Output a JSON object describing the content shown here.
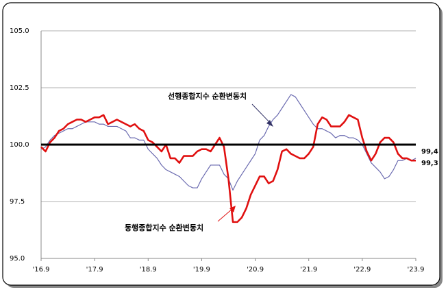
{
  "chart_data": {
    "type": "line",
    "categories": [
      "'16.9",
      null,
      null,
      null,
      null,
      null,
      null,
      null,
      null,
      null,
      null,
      null,
      "'17.9",
      null,
      null,
      null,
      null,
      null,
      null,
      null,
      null,
      null,
      null,
      null,
      "'18.9",
      null,
      null,
      null,
      null,
      null,
      null,
      null,
      null,
      null,
      null,
      null,
      "'19.9",
      null,
      null,
      null,
      null,
      null,
      null,
      null,
      null,
      null,
      null,
      null,
      "'20.9",
      null,
      null,
      null,
      null,
      null,
      null,
      null,
      null,
      null,
      null,
      null,
      "'21.9",
      null,
      null,
      null,
      null,
      null,
      null,
      null,
      null,
      null,
      null,
      null,
      "'22.9",
      null,
      null,
      null,
      null,
      null,
      null,
      null,
      null,
      null,
      null,
      null,
      "'23.9"
    ],
    "series": [
      {
        "name": "선행종합지수 순환변동치",
        "color": "#6b6bb0",
        "width": 1.2,
        "values": [
          99.8,
          99.9,
          100.2,
          100.4,
          100.5,
          100.6,
          100.7,
          100.7,
          100.8,
          100.9,
          101.0,
          101.0,
          101.0,
          100.9,
          100.9,
          100.8,
          100.8,
          100.8,
          100.7,
          100.6,
          100.3,
          100.3,
          100.2,
          100.2,
          99.8,
          99.6,
          99.4,
          99.1,
          98.9,
          98.8,
          98.7,
          98.6,
          98.4,
          98.2,
          98.1,
          98.1,
          98.5,
          98.8,
          99.1,
          99.1,
          99.1,
          98.7,
          98.5,
          98.0,
          98.4,
          98.7,
          99.0,
          99.3,
          99.6,
          100.2,
          100.4,
          100.8,
          101.1,
          101.3,
          101.6,
          101.9,
          102.2,
          102.1,
          101.8,
          101.5,
          101.2,
          100.9,
          100.7,
          100.7,
          100.6,
          100.5,
          100.3,
          100.4,
          100.4,
          100.3,
          100.3,
          100.2,
          100.0,
          99.6,
          99.2,
          99.0,
          98.8,
          98.5,
          98.6,
          98.9,
          99.3,
          99.3,
          99.4,
          99.3,
          99.4
        ],
        "value_labels": [
          null,
          null,
          null,
          null,
          null,
          null,
          null,
          null,
          null,
          null,
          null,
          null,
          null,
          null,
          null,
          null,
          null,
          null,
          null,
          null,
          null,
          null,
          null,
          null,
          null,
          null,
          null,
          null,
          null,
          null,
          null,
          null,
          null,
          null,
          null,
          null,
          null,
          null,
          null,
          null,
          null,
          null,
          null,
          null,
          null,
          null,
          null,
          null,
          null,
          null,
          null,
          null,
          null,
          null,
          null,
          null,
          null,
          null,
          null,
          null,
          null,
          null,
          null,
          null,
          null,
          null,
          null,
          null,
          null,
          null,
          null,
          null,
          null,
          null,
          null,
          null,
          null,
          null,
          null,
          null,
          null,
          null,
          null,
          null,
          "99,4"
        ]
      },
      {
        "name": "동행종합지수 순환변동치",
        "color": "#e01010",
        "width": 2.6,
        "values": [
          99.9,
          99.7,
          100.1,
          100.3,
          100.6,
          100.7,
          100.9,
          101.0,
          101.1,
          101.1,
          101.0,
          101.1,
          101.2,
          101.2,
          101.3,
          100.9,
          101.0,
          101.1,
          101.0,
          100.9,
          100.8,
          100.9,
          100.7,
          100.6,
          100.2,
          100.1,
          99.9,
          99.7,
          100.0,
          99.4,
          99.4,
          99.2,
          99.5,
          99.5,
          99.5,
          99.7,
          99.8,
          99.8,
          99.7,
          100.0,
          100.3,
          99.9,
          98.5,
          96.6,
          96.6,
          96.8,
          97.2,
          97.8,
          98.2,
          98.6,
          98.6,
          98.3,
          98.4,
          98.9,
          99.7,
          99.8,
          99.6,
          99.5,
          99.4,
          99.4,
          99.6,
          99.9,
          100.9,
          101.2,
          101.1,
          100.8,
          100.8,
          100.8,
          101.0,
          101.3,
          101.2,
          101.1,
          100.3,
          99.7,
          99.3,
          99.6,
          100.1,
          100.3,
          100.3,
          100.1,
          99.6,
          99.4,
          99.4,
          99.3,
          99.3
        ],
        "value_labels": [
          null,
          null,
          null,
          null,
          null,
          null,
          null,
          null,
          null,
          null,
          null,
          null,
          null,
          null,
          null,
          null,
          null,
          null,
          null,
          null,
          null,
          null,
          null,
          null,
          null,
          null,
          null,
          null,
          null,
          null,
          null,
          null,
          null,
          null,
          null,
          null,
          null,
          null,
          null,
          null,
          null,
          null,
          null,
          null,
          null,
          null,
          null,
          null,
          null,
          null,
          null,
          null,
          null,
          null,
          null,
          null,
          null,
          null,
          null,
          null,
          null,
          null,
          null,
          null,
          null,
          null,
          null,
          null,
          null,
          null,
          null,
          null,
          null,
          null,
          null,
          null,
          null,
          null,
          null,
          null,
          null,
          null,
          null,
          null,
          "99,3"
        ]
      }
    ],
    "ylim": [
      95,
      105
    ],
    "yticks": [
      {
        "value": 95,
        "label": "95.0"
      },
      {
        "value": 97.5,
        "label": "97.5"
      },
      {
        "value": 100,
        "label": "100.0"
      },
      {
        "value": 102.5,
        "label": "102.5"
      },
      {
        "value": 105,
        "label": "105.0"
      }
    ],
    "reference_line": 100,
    "grid": true
  }
}
